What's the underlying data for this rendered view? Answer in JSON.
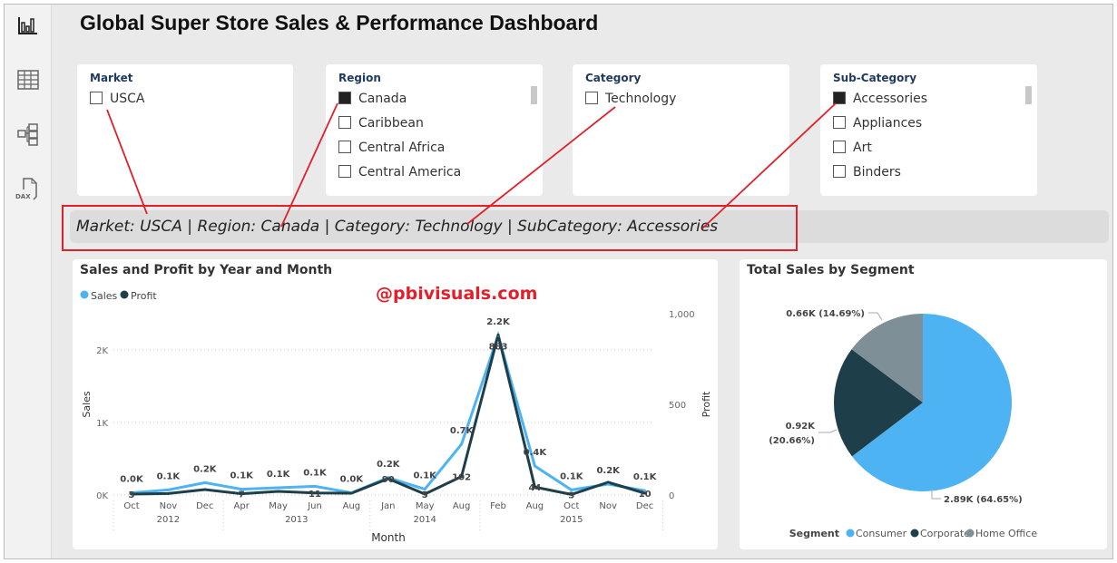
{
  "title": "Global Super Store Sales & Performance Dashboard",
  "sidebar": [
    "report-view-icon",
    "table-view-icon",
    "model-view-icon",
    "dax-query-icon"
  ],
  "slicers": [
    {
      "header": "Market",
      "options": [
        {
          "label": "USCA",
          "checked": false
        }
      ]
    },
    {
      "header": "Region",
      "options": [
        {
          "label": "Canada",
          "checked": true
        },
        {
          "label": "Caribbean",
          "checked": false
        },
        {
          "label": "Central Africa",
          "checked": false
        },
        {
          "label": "Central America",
          "checked": false
        }
      ]
    },
    {
      "header": "Category",
      "options": [
        {
          "label": "Technology",
          "checked": false
        }
      ]
    },
    {
      "header": "Sub-Category",
      "options": [
        {
          "label": "Accessories",
          "checked": true
        },
        {
          "label": "Appliances",
          "checked": false
        },
        {
          "label": "Art",
          "checked": false
        },
        {
          "label": "Binders",
          "checked": false
        }
      ]
    }
  ],
  "filter_text": "Market: USCA | Region: Canada | Category: Technology | SubCategory: Accessories",
  "watermark": "@pbivisuals.com",
  "colors": {
    "sales": "#4db3f2",
    "profit": "#1e3e4a",
    "home_office": "#7f8f98",
    "annotation": "#e0202a"
  },
  "chart_data": [
    {
      "type": "line",
      "title": "Sales and Profit by Year and Month",
      "legend": [
        "Sales",
        "Profit"
      ],
      "xlabel": "Month",
      "ylabel": "Sales",
      "y2label": "Profit",
      "months": [
        "Oct",
        "Nov",
        "Dec",
        "Apr",
        "May",
        "Jun",
        "Aug",
        "Jan",
        "May",
        "Aug",
        "Feb",
        "Aug",
        "Oct",
        "Nov",
        "Dec"
      ],
      "years": [
        {
          "label": "2012",
          "span": 3
        },
        {
          "label": "2013",
          "span": 4
        },
        {
          "label": "2014",
          "span": 3
        },
        {
          "label": "2015",
          "span": 5
        }
      ],
      "yticks": [
        "0K",
        "1K",
        "2K"
      ],
      "y2ticks": [
        "0",
        "500",
        "1,000"
      ],
      "ylim": [
        0,
        2600
      ],
      "y2lim": [
        0,
        1000
      ],
      "series": [
        {
          "name": "Sales",
          "values": [
            30,
            70,
            170,
            80,
            100,
            120,
            30,
            240,
            80,
            700,
            2200,
            400,
            70,
            150,
            60
          ],
          "labels": [
            "0.0K",
            "0.1K",
            "0.2K",
            "0.1K",
            "0.1K",
            "0.1K",
            "0.0K",
            "0.2K",
            "0.1K",
            "0.7K",
            "2.2K",
            "0.4K",
            "0.1K",
            "0.2K",
            "0.1K"
          ]
        },
        {
          "name": "Profit",
          "values": [
            5,
            8,
            30,
            7,
            20,
            11,
            10,
            90,
            5,
            102,
            883,
            44,
            3,
            70,
            10
          ],
          "labels": [
            "5",
            null,
            null,
            "7",
            null,
            "11",
            null,
            "90",
            "5",
            "102",
            "883",
            "44",
            "3",
            null,
            "10"
          ]
        }
      ]
    },
    {
      "type": "pie",
      "title": "Total Sales by Segment",
      "legend_title": "Segment",
      "slices": [
        {
          "name": "Consumer",
          "value": 2.89,
          "label": "2.89K (64.65%)",
          "pct": 64.65
        },
        {
          "name": "Corporate",
          "value": 0.92,
          "label": "0.92K (20.66%)",
          "pct": 20.66
        },
        {
          "name": "Home Office",
          "value": 0.66,
          "label": "0.66K (14.69%)",
          "pct": 14.69
        }
      ]
    }
  ]
}
